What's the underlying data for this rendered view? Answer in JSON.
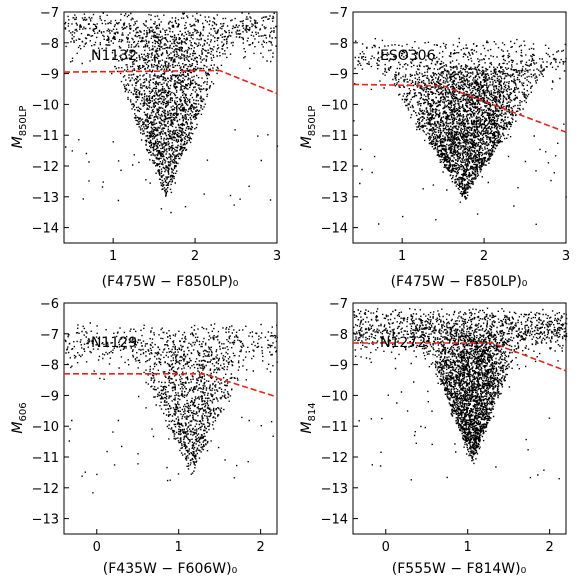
{
  "chart_data": [
    {
      "type": "scatter",
      "name": "N1132",
      "xlabel": "(F475W − F850LP)₀",
      "ylabel": "M850LP",
      "ylabel_main": "M",
      "ylabel_sub": "850LP",
      "xlim": [
        0.4,
        3.0
      ],
      "ylim": [
        -7,
        -14.5
      ],
      "xticks": [
        1,
        2,
        3
      ],
      "yticks": [
        -7,
        -8,
        -9,
        -10,
        -11,
        -12,
        -13,
        -14
      ],
      "x_tick_labels": [
        "1",
        "2",
        "3"
      ],
      "y_tick_labels": [
        "−7",
        "−8",
        "−9",
        "−10",
        "−11",
        "−12",
        "−13",
        "−14"
      ],
      "cloud": {
        "n": 2600,
        "cx": 1.65,
        "sx": 0.25,
        "ytop": -12.9,
        "ybot": -7.6,
        "lowtail": 0.25
      },
      "trend": {
        "x": [
          0.4,
          2.3,
          3.0
        ],
        "y": [
          -8.95,
          -8.9,
          -9.65
        ],
        "color": "#e8231a"
      }
    },
    {
      "type": "scatter",
      "name": "ESO306",
      "xlabel": "(F475W − F850LP)₀",
      "ylabel": "M850LP",
      "ylabel_main": "M",
      "ylabel_sub": "850LP",
      "xlim": [
        0.4,
        3.0
      ],
      "ylim": [
        -7,
        -14.5
      ],
      "xticks": [
        1,
        2,
        3
      ],
      "yticks": [
        -7,
        -8,
        -9,
        -10,
        -11,
        -12,
        -13,
        -14
      ],
      "x_tick_labels": [
        "1",
        "2",
        "3"
      ],
      "y_tick_labels": [
        "−7",
        "−8",
        "−9",
        "−10",
        "−11",
        "−12",
        "−13",
        "−14"
      ],
      "cloud": {
        "n": 3600,
        "cx": 1.75,
        "sx": 0.33,
        "ytop": -12.9,
        "ybot": -8.5,
        "lowtail": 0.1
      },
      "trend": {
        "x": [
          0.4,
          1.5,
          3.0
        ],
        "y": [
          -9.35,
          -9.4,
          -10.9
        ],
        "color": "#e8231a"
      }
    },
    {
      "type": "scatter",
      "name": "N1129",
      "xlabel": "(F435W − F606W)₀",
      "ylabel": "M606",
      "ylabel_main": "M",
      "ylabel_sub": "606",
      "xlim": [
        -0.4,
        2.2
      ],
      "ylim": [
        -6,
        -13.5
      ],
      "xticks": [
        0,
        1,
        2
      ],
      "yticks": [
        -6,
        -7,
        -8,
        -9,
        -10,
        -11,
        -12,
        -13
      ],
      "x_tick_labels": [
        "0",
        "1",
        "2"
      ],
      "y_tick_labels": [
        "−6",
        "−7",
        "−8",
        "−9",
        "−10",
        "−11",
        "−12",
        "−13"
      ],
      "cloud": {
        "n": 1500,
        "cx": 1.15,
        "sx": 0.24,
        "ytop": -11.4,
        "ybot": -7.3,
        "lowtail": 0.35
      },
      "trend": {
        "x": [
          -0.4,
          1.3,
          2.2
        ],
        "y": [
          -8.3,
          -8.3,
          -9.05
        ],
        "color": "#e8231a"
      }
    },
    {
      "type": "scatter",
      "name": "N1272",
      "xlabel": "(F555W − F814W)₀",
      "ylabel": "M814",
      "ylabel_main": "M",
      "ylabel_sub": "814",
      "xlim": [
        -0.4,
        2.2
      ],
      "ylim": [
        -7,
        -14.5
      ],
      "xticks": [
        0,
        1,
        2
      ],
      "yticks": [
        -7,
        -8,
        -9,
        -10,
        -11,
        -12,
        -13,
        -14
      ],
      "x_tick_labels": [
        "0",
        "1",
        "2"
      ],
      "y_tick_labels": [
        "−7",
        "−8",
        "−9",
        "−10",
        "−11",
        "−12",
        "−13",
        "−14"
      ],
      "cloud": {
        "n": 3600,
        "cx": 1.05,
        "sx": 0.2,
        "ytop": -12.0,
        "ybot": -7.8,
        "lowtail": 0.3
      },
      "trend": {
        "x": [
          -0.4,
          1.3,
          2.2
        ],
        "y": [
          -8.3,
          -8.3,
          -9.2
        ],
        "color": "#e8231a"
      }
    }
  ]
}
